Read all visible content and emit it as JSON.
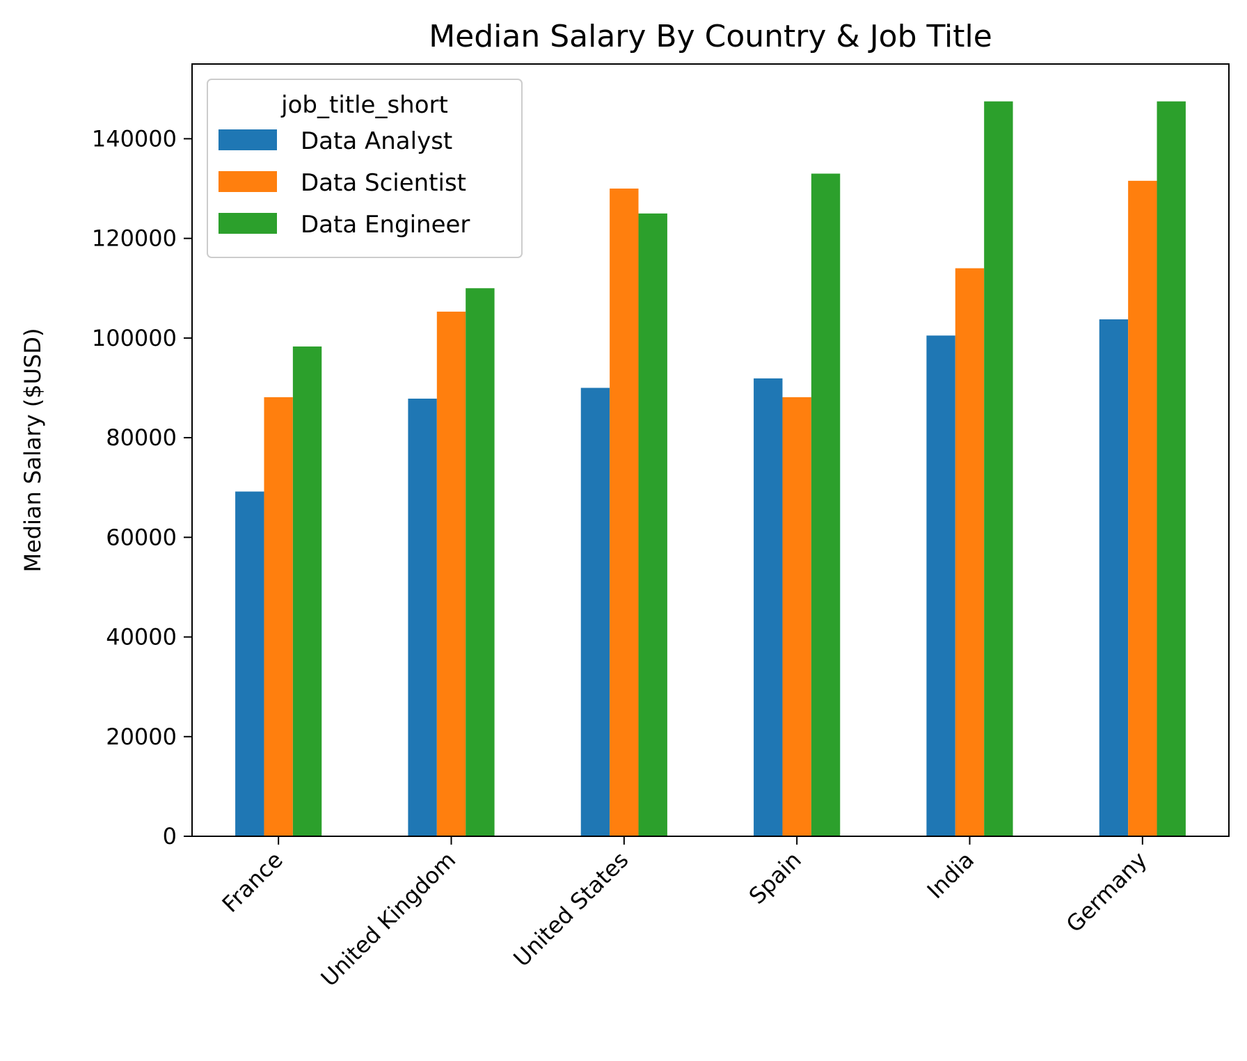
{
  "chart_data": {
    "type": "bar",
    "title": "Median Salary By Country & Job Title",
    "xlabel": "",
    "ylabel": "Median Salary ($USD)",
    "categories": [
      "France",
      "United Kingdom",
      "United States",
      "Spain",
      "India",
      "Germany"
    ],
    "series": [
      {
        "name": "Data Analyst",
        "color": "#1f77b4",
        "values": [
          69192,
          87838,
          90000,
          91900,
          100500,
          103750
        ]
      },
      {
        "name": "Data Scientist",
        "color": "#ff7f0e",
        "values": [
          88128,
          105300,
          130000,
          88128,
          114008,
          131560
        ]
      },
      {
        "name": "Data Engineer",
        "color": "#2ca02c",
        "values": [
          98301,
          110000,
          125000,
          133000,
          147500,
          147500
        ]
      }
    ],
    "ylim": [
      0,
      155000
    ],
    "yticks": [
      0,
      20000,
      40000,
      60000,
      80000,
      100000,
      120000,
      140000
    ],
    "grid": false,
    "legend": {
      "title": "job_title_short",
      "placement": "top-left"
    }
  }
}
